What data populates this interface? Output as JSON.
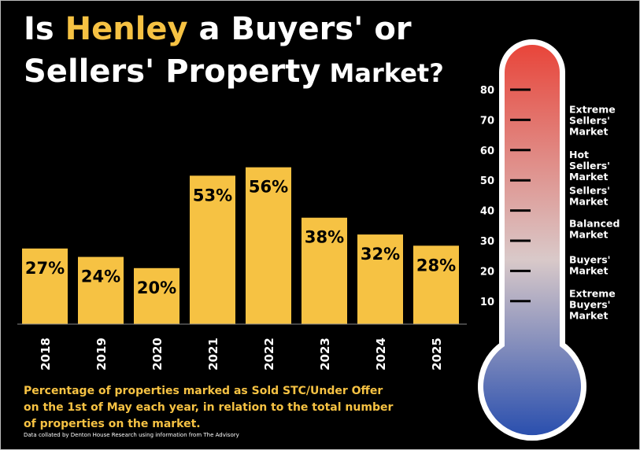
{
  "title": {
    "line1_pre": "Is ",
    "line1_highlight": "Henley",
    "line1_post": " a Buyers' or",
    "line2_main": "Sellers' Property",
    "line2_small": " Market?"
  },
  "caption": "Percentage of properties marked as Sold STC/Under Offer on the 1st of May each year, in relation to the total number of properties on the market.",
  "source": "Data collated by Denton House Research using information from The Advisory",
  "colors": {
    "background": "#000000",
    "bar": "#f6c243",
    "highlight": "#f6c243",
    "thermo_top": "#e8453a",
    "thermo_mid": "#d9c9c9",
    "thermo_bottom": "#2a4fae"
  },
  "chart_data": {
    "type": "bar",
    "categories": [
      "2018",
      "2019",
      "2020",
      "2021",
      "2022",
      "2023",
      "2024",
      "2025"
    ],
    "values": [
      27,
      24,
      20,
      53,
      56,
      38,
      32,
      28
    ],
    "data_labels": [
      "27%",
      "24%",
      "20%",
      "53%",
      "56%",
      "38%",
      "32%",
      "28%"
    ],
    "ylim": [
      0,
      80
    ],
    "grid": false,
    "thermometer": {
      "ticks": [
        80,
        70,
        60,
        50,
        40,
        30,
        20,
        10
      ],
      "zones": [
        {
          "lines": [
            "Extreme",
            "Sellers'",
            "Market"
          ],
          "level": 70
        },
        {
          "lines": [
            "Hot",
            "Sellers'",
            "Market"
          ],
          "level": 55
        },
        {
          "lines": [
            "Sellers'",
            "Market"
          ],
          "level": 45
        },
        {
          "lines": [
            "Balanced",
            "Market"
          ],
          "level": 34
        },
        {
          "lines": [
            "Buyers'",
            "Market"
          ],
          "level": 22
        },
        {
          "lines": [
            "Extreme",
            "Buyers'",
            "Market"
          ],
          "level": 9
        }
      ]
    }
  }
}
